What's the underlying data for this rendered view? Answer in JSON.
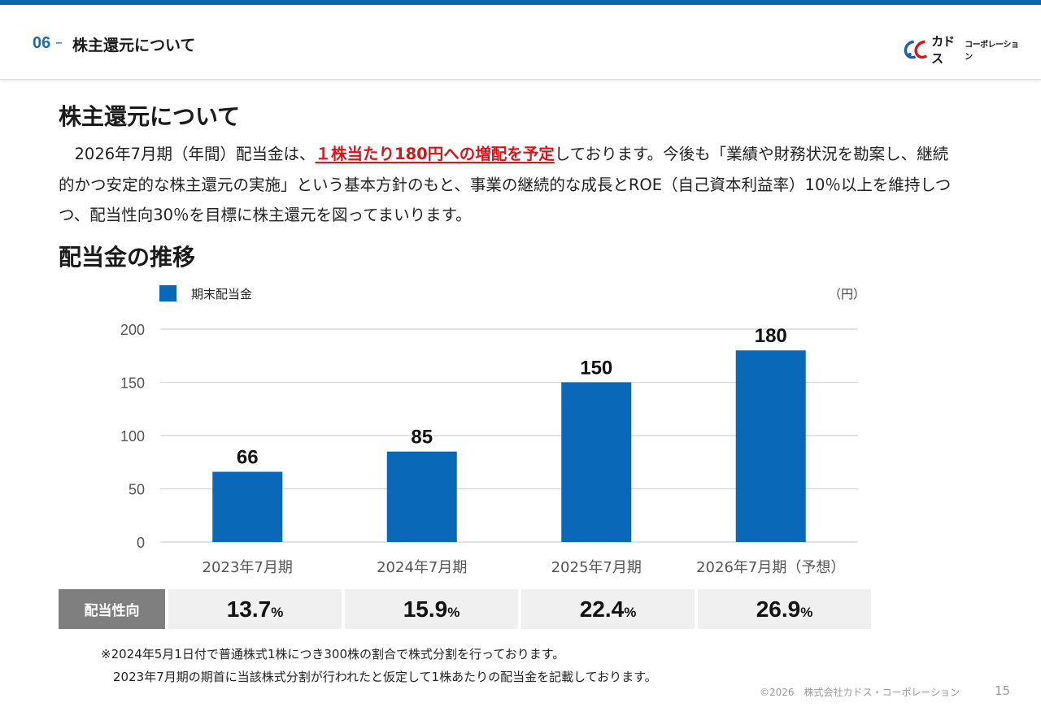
{
  "header": {
    "section_number": "06",
    "section_dash": "–",
    "section_title": "株主還元について",
    "logo_main": "カドス",
    "logo_sub": "コーポレーション"
  },
  "heading1": "株主還元について",
  "paragraph": {
    "before": "　2026年7月期（年間）配当金は、",
    "highlight": "１株当たり180円への増配を予定",
    "after": "しております。今後も「業績や財務状況を勘案し、継続的かつ安定的な株主還元の実施」という基本方針のもと、事業の継続的な成長とROE（自己資本利益率）10％以上を維持しつつ、配当性向30％を目標に株主還元を図ってまいります。"
  },
  "heading2": "配当金の推移",
  "colors": {
    "bar": "#0a68b8",
    "accent": "#1f6aa8",
    "highlight": "#d7141a",
    "grid": "#d9d9d9"
  },
  "chart_data": {
    "type": "bar",
    "title": "配当金の推移",
    "legend": [
      "期末配当金"
    ],
    "legend_position": "top-left",
    "unit_label": "（円）",
    "categories": [
      "2023年7月期",
      "2024年7月期",
      "2025年7月期",
      "2026年7月期（予想）"
    ],
    "series": [
      {
        "name": "期末配当金",
        "values": [
          66,
          85,
          150,
          180
        ]
      }
    ],
    "yticks": [
      0,
      50,
      100,
      150,
      200
    ],
    "ylim": [
      0,
      200
    ],
    "grid": true,
    "xlabel": "",
    "ylabel": ""
  },
  "payout_ratio": {
    "label": "配当性向",
    "unit": "%",
    "values": [
      "13.7",
      "15.9",
      "22.4",
      "26.9"
    ]
  },
  "notes": [
    "※2024年5月1日付で普通株式1株につき300株の割合で株式分割を行っております。",
    "　2023年7月期の期首に当該株式分割が行われたと仮定して1株あたりの配当金を記載しております。"
  ],
  "footer": {
    "copyright": "©2026　株式会社カドス・コーポレーション",
    "page": "15"
  }
}
